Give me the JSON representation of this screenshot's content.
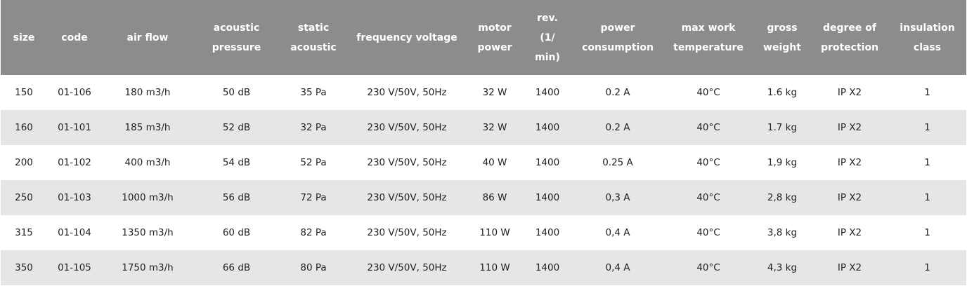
{
  "table": {
    "headers": [
      [
        "size"
      ],
      [
        "code"
      ],
      [
        "air flow"
      ],
      [
        "acoustic",
        "pressure"
      ],
      [
        "static",
        "acoustic"
      ],
      [
        "frequency voltage"
      ],
      [
        "motor",
        "power"
      ],
      [
        "rev.",
        "(1/",
        "min)"
      ],
      [
        "power",
        "consumption"
      ],
      [
        "max work",
        "temperature"
      ],
      [
        "gross",
        "weight"
      ],
      [
        "degree of",
        "protection"
      ],
      [
        "insulation",
        "class"
      ]
    ],
    "rows": [
      [
        "150",
        "01-106",
        "180 m3/h",
        "50 dB",
        "35 Pa",
        "230 V/50V, 50Hz",
        "32 W",
        "1400",
        "0.2 A",
        "40°C",
        "1.6 kg",
        "IP X2",
        "1"
      ],
      [
        "160",
        "01-101",
        "185 m3/h",
        "52 dB",
        "32 Pa",
        "230 V/50V, 50Hz",
        "32 W",
        "1400",
        "0.2 A",
        "40°C",
        "1.7 kg",
        "IP X2",
        "1"
      ],
      [
        "200",
        "01-102",
        "400 m3/h",
        "54 dB",
        "52 Pa",
        "230 V/50V, 50Hz",
        "40 W",
        "1400",
        "0.25 A",
        "40°C",
        "1,9 kg",
        "IP X2",
        "1"
      ],
      [
        "250",
        "01-103",
        "1000 m3/h",
        "56 dB",
        "72 Pa",
        "230 V/50V, 50Hz",
        "86 W",
        "1400",
        "0,3 A",
        "40°C",
        "2,8 kg",
        "IP X2",
        "1"
      ],
      [
        "315",
        "01-104",
        "1350 m3/h",
        "60 dB",
        "82 Pa",
        "230 V/50V, 50Hz",
        "110 W",
        "1400",
        "0,4 A",
        "40°C",
        "3,8 kg",
        "IP X2",
        "1"
      ],
      [
        "350",
        "01-105",
        "1750 m3/h",
        "66 dB",
        "80 Pa",
        "230 V/50V, 50Hz",
        "110 W",
        "1400",
        "0,4 A",
        "40°C",
        "4,3 kg",
        "IP X2",
        "1"
      ]
    ]
  },
  "colors": {
    "header_bg": "#8c8c8c",
    "header_text": "#ffffff",
    "stripe_bg": "#e6e6e6"
  }
}
